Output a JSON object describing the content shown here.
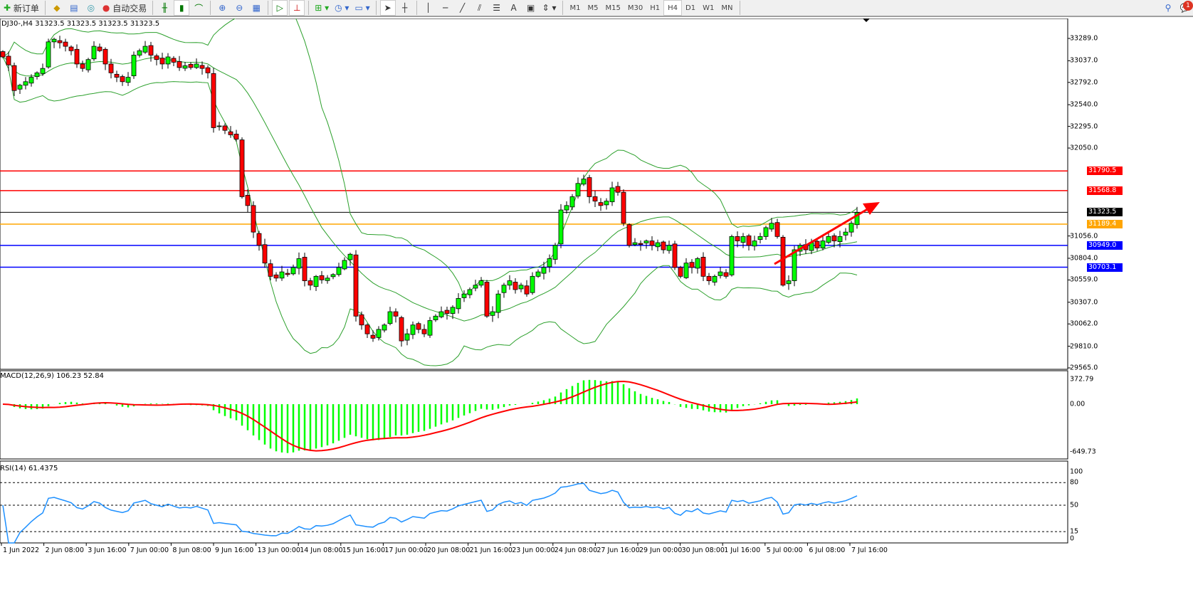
{
  "toolbar": {
    "new_order": "新订单",
    "auto_trade": "自动交易",
    "timeframes": [
      "M1",
      "M5",
      "M15",
      "M30",
      "H1",
      "H4",
      "D1",
      "W1",
      "MN"
    ],
    "active_timeframe": "H4",
    "notification_count": "1",
    "icons": [
      "new-order-icon",
      "gold-icon",
      "history-icon",
      "signal-icon",
      "autotrade-icon",
      "bar-chart-icon",
      "candle-chart-icon",
      "line-chart-icon",
      "zoom-in-icon",
      "zoom-out-icon",
      "tile-icon",
      "autoscroll-icon",
      "chart-shift-icon",
      "new-chart-icon",
      "clock-icon",
      "template-icon",
      "cursor-icon",
      "crosshair-icon",
      "vline-icon",
      "hline-icon",
      "trendline-icon",
      "fibo-icon",
      "channel-icon",
      "text-icon",
      "label-icon",
      "arrows-icon",
      "search-icon",
      "chat-icon"
    ],
    "labels_text": {
      "text_tool": "A"
    }
  },
  "chart": {
    "symbol_info": "DJ30-,H4  31323.5 31323.5 31323.5 31323.5",
    "price_ticks": [
      "33289.0",
      "33037.0",
      "32792.0",
      "32540.0",
      "32295.0",
      "32050.0",
      "31056.0",
      "30804.0",
      "30559.0",
      "30307.0",
      "30062.0",
      "29810.0",
      "29565.0"
    ],
    "levels": [
      {
        "price": "31790.5",
        "color": "#ff0000"
      },
      {
        "price": "31568.8",
        "color": "#ff0000"
      },
      {
        "price": "31323.5",
        "color": "#000000"
      },
      {
        "price": "31189.4",
        "color": "#ffa500"
      },
      {
        "price": "30949.0",
        "color": "#0000ff"
      },
      {
        "price": "30703.1",
        "color": "#0000ff"
      }
    ],
    "time_ticks": [
      "1 Jun 2022",
      "2 Jun 08:00",
      "3 Jun 16:00",
      "7 Jun 00:00",
      "8 Jun 08:00",
      "9 Jun 16:00",
      "13 Jun 00:00",
      "14 Jun 08:00",
      "15 Jun 16:00",
      "17 Jun 00:00",
      "20 Jun 08:00",
      "21 Jun 16:00",
      "23 Jun 00:00",
      "24 Jun 08:00",
      "27 Jun 16:00",
      "29 Jun 00:00",
      "30 Jun 08:00",
      "1 Jul 16:00",
      "5 Jul 00:00",
      "6 Jul 08:00",
      "7 Jul 16:00"
    ],
    "colors": {
      "bull": "#00ff00",
      "bear": "#ff0000",
      "bands": "#2ca02c",
      "arrow": "#ff0000",
      "macd_hist": "#00ff00",
      "macd_signal": "#ff0000",
      "rsi": "#1e90ff"
    }
  },
  "macd": {
    "label": "MACD(12,26,9) 106.23 52.84",
    "ticks": [
      "372.79",
      "0.00",
      "-649.73"
    ]
  },
  "rsi": {
    "label": "RSI(14) 61.4375",
    "ticks": [
      "100",
      "80",
      "50",
      "15",
      "0"
    ]
  },
  "chart_data": {
    "type": "candlestick",
    "timeframe": "H4",
    "ylim": [
      29565,
      33289
    ],
    "closes": [
      33080,
      32990,
      32700,
      32760,
      32800,
      32850,
      32900,
      32950,
      33250,
      33280,
      33240,
      33200,
      33150,
      33000,
      32950,
      33050,
      33200,
      33150,
      33000,
      32900,
      32850,
      32800,
      32850,
      33100,
      33150,
      33200,
      33100,
      33050,
      33000,
      33080,
      33020,
      32960,
      32980,
      32960,
      33000,
      32950,
      32900,
      32280,
      32300,
      32250,
      32200,
      32150,
      31500,
      31400,
      31100,
      30950,
      30750,
      30600,
      30580,
      30650,
      30620,
      30700,
      30800,
      30550,
      30500,
      30600,
      30560,
      30580,
      30620,
      30700,
      30780,
      30850,
      30150,
      30050,
      29950,
      29900,
      30000,
      30050,
      30200,
      30150,
      29870,
      29950,
      30050,
      30000,
      29950,
      30100,
      30150,
      30200,
      30180,
      30250,
      30350,
      30400,
      30450,
      30500,
      30550,
      30150,
      30200,
      30400,
      30500,
      30550,
      30450,
      30500,
      30400,
      30600,
      30650,
      30700,
      30800,
      30950,
      31350,
      31400,
      31500,
      31650,
      31700,
      31500,
      31450,
      31400,
      31450,
      31600,
      31550,
      31200,
      30950,
      30980,
      30960,
      31000,
      30950,
      30980,
      30900,
      30950,
      30700,
      30600,
      30750,
      30700,
      30800,
      30600,
      30550,
      30600,
      30650,
      30600,
      31050,
      31000,
      31050,
      30950,
      31000,
      31050,
      31150,
      31200,
      31050,
      30500,
      30550,
      30900,
      30950,
      30900,
      30980,
      30920,
      31000,
      31050,
      31000,
      31050,
      31100,
      31200,
      31320
    ],
    "rsi_levels": [
      80,
      50,
      15
    ]
  }
}
